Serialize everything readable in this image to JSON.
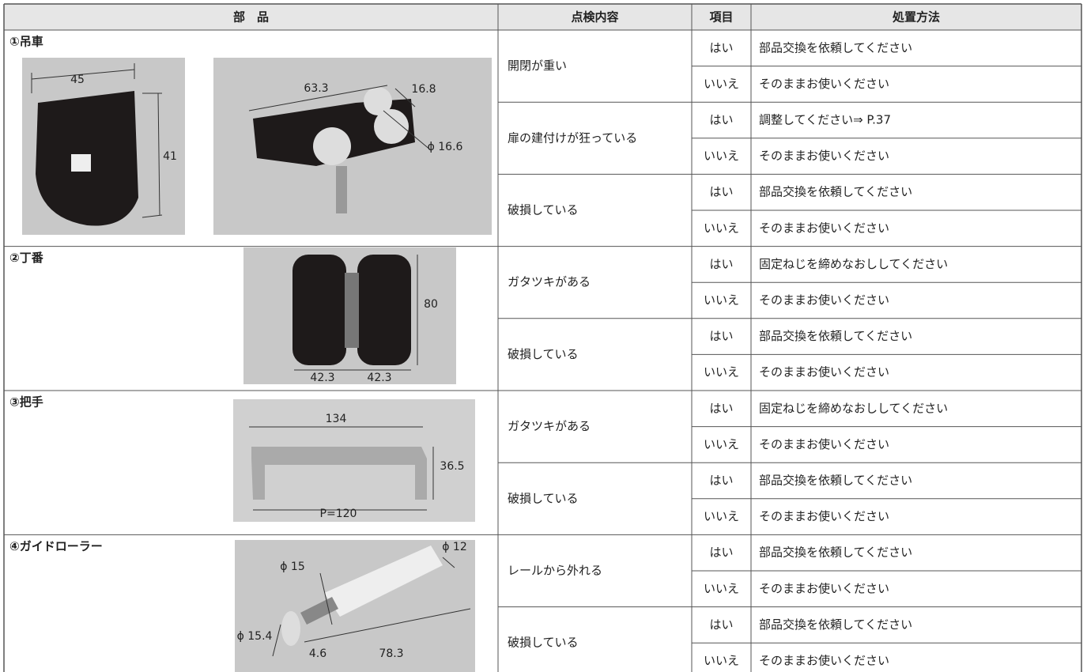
{
  "header": [
    "部　品",
    "点検内容",
    "項目",
    "処置方法"
  ],
  "parts": [
    {
      "name": "①吊車",
      "dimensions": [
        "45",
        "41",
        "63.3",
        "16.8",
        "ϕ 16.6"
      ],
      "checks": [
        {
          "content": "開閉が重い",
          "rows": [
            [
              "はい",
              "部品交換を依頼してください"
            ],
            [
              "いいえ",
              "そのままお使いください"
            ]
          ]
        },
        {
          "content": "扉の建付けが狂っている",
          "rows": [
            [
              "はい",
              "調整してください⇒ P.37"
            ],
            [
              "いいえ",
              "そのままお使いください"
            ]
          ]
        },
        {
          "content": "破損している",
          "rows": [
            [
              "はい",
              "部品交換を依頼してください"
            ],
            [
              "いいえ",
              "そのままお使いください"
            ]
          ]
        }
      ]
    },
    {
      "name": "②丁番",
      "dimensions": [
        "80",
        "42.3",
        "42.3"
      ],
      "checks": [
        {
          "content": "ガタツキがある",
          "rows": [
            [
              "はい",
              "固定ねじを締めなおししてください"
            ],
            [
              "いいえ",
              "そのままお使いください"
            ]
          ]
        },
        {
          "content": "破損している",
          "rows": [
            [
              "はい",
              "部品交換を依頼してください"
            ],
            [
              "いいえ",
              "そのままお使いください"
            ]
          ]
        }
      ]
    },
    {
      "name": "③把手",
      "dimensions": [
        "134",
        "36.5",
        "P=120"
      ],
      "checks": [
        {
          "content": "ガタツキがある",
          "rows": [
            [
              "はい",
              "固定ねじを締めなおししてください"
            ],
            [
              "いいえ",
              "そのままお使いください"
            ]
          ]
        },
        {
          "content": "破損している",
          "rows": [
            [
              "はい",
              "部品交換を依頼してください"
            ],
            [
              "いいえ",
              "そのままお使いください"
            ]
          ]
        }
      ]
    },
    {
      "name": "④ガイドローラー",
      "dimensions": [
        "ϕ 12",
        "ϕ 15",
        "ϕ 15.4",
        "4.6",
        "78.3"
      ],
      "checks": [
        {
          "content": "レールから外れる",
          "rows": [
            [
              "はい",
              "部品交換を依頼してください"
            ],
            [
              "いいえ",
              "そのままお使いください"
            ]
          ]
        },
        {
          "content": "破損している",
          "rows": [
            [
              "はい",
              "部品交換を依頼してください"
            ],
            [
              "いいえ",
              "そのままお使いください"
            ]
          ]
        }
      ]
    }
  ]
}
